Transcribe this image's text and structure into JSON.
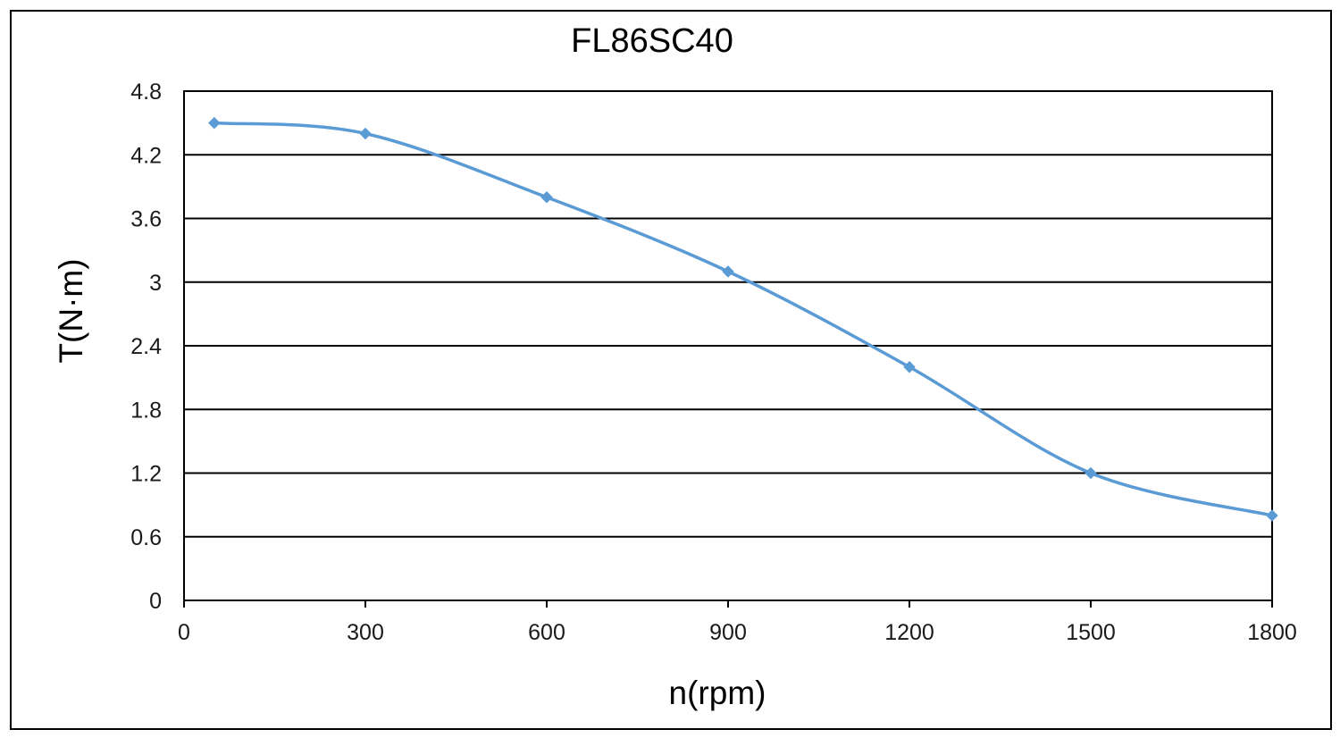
{
  "chart_data": {
    "type": "line",
    "title": "FL86SC40",
    "xlabel": "n(rpm)",
    "ylabel": "T(N·m)",
    "xlim": [
      0,
      1800
    ],
    "ylim": [
      0,
      4.8
    ],
    "xticks": [
      "0",
      "300",
      "600",
      "900",
      "1200",
      "1500",
      "1800"
    ],
    "yticks": [
      "0",
      "0.6",
      "1.2",
      "1.8",
      "2.4",
      "3",
      "3.6",
      "4.2",
      "4.8"
    ],
    "grid": "horizontal",
    "legend": "none",
    "series": [
      {
        "x": [
          50,
          300,
          600,
          900,
          1200,
          1500,
          1800
        ],
        "y": [
          4.5,
          4.4,
          3.8,
          3.1,
          2.2,
          1.2,
          0.8
        ],
        "color": "#5b9bd5",
        "marker": "diamond",
        "smooth": true
      }
    ]
  }
}
